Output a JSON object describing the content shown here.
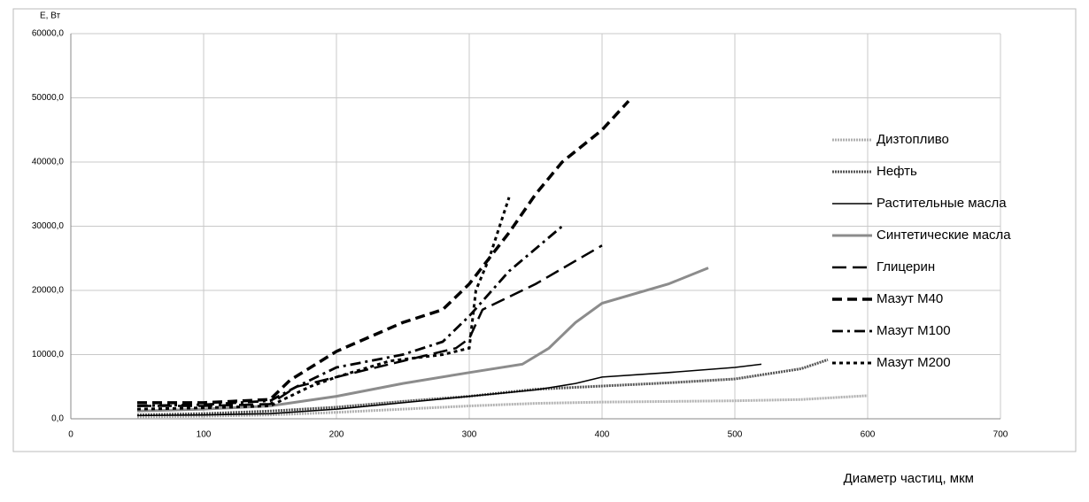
{
  "chart_data": {
    "type": "line",
    "y_label": "E, Вт",
    "x_label": "Диаметр частиц, мкм",
    "xlim": [
      0,
      700
    ],
    "xticks": [
      0,
      100,
      200,
      300,
      400,
      500,
      600,
      700
    ],
    "ylim": [
      0,
      60000
    ],
    "yticks": [
      {
        "value": 0,
        "label": "0,0"
      },
      {
        "value": 10000,
        "label": "10000,0"
      },
      {
        "value": 20000,
        "label": "20000,0"
      },
      {
        "value": 30000,
        "label": "30000,0"
      },
      {
        "value": 40000,
        "label": "40000,0"
      },
      {
        "value": 50000,
        "label": "50000,0"
      },
      {
        "value": 60000,
        "label": "60000,0"
      }
    ],
    "grid": true,
    "legend": "right",
    "series": [
      {
        "name": "Дизтопливо",
        "color": "#b0b0b0",
        "style": "dotted",
        "x": [
          50,
          100,
          150,
          200,
          250,
          300,
          350,
          400,
          450,
          500,
          550,
          600
        ],
        "values": [
          300,
          400,
          600,
          1000,
          1500,
          2000,
          2400,
          2600,
          2700,
          2800,
          3000,
          3600
        ]
      },
      {
        "name": "Нефть",
        "color": "#555555",
        "style": "dotted",
        "x": [
          50,
          100,
          150,
          200,
          250,
          300,
          350,
          400,
          450,
          500,
          550,
          570
        ],
        "values": [
          600,
          800,
          1200,
          1800,
          2700,
          3500,
          4600,
          5100,
          5600,
          6200,
          7800,
          9200
        ]
      },
      {
        "name": "Растительные масла",
        "color": "#000000",
        "style": "solid",
        "x": [
          50,
          100,
          150,
          200,
          250,
          300,
          350,
          380,
          400,
          450,
          500,
          520
        ],
        "values": [
          500,
          600,
          800,
          1500,
          2500,
          3500,
          4500,
          5500,
          6500,
          7200,
          8000,
          8500
        ]
      },
      {
        "name": "Синтетические масла",
        "color": "#8c8c8c",
        "style": "solid-thick",
        "x": [
          50,
          100,
          150,
          200,
          250,
          300,
          340,
          360,
          380,
          400,
          450,
          480
        ],
        "values": [
          1200,
          1500,
          2000,
          3500,
          5500,
          7200,
          8500,
          11000,
          15000,
          18000,
          21000,
          23500
        ]
      },
      {
        "name": "Глицерин",
        "color": "#000000",
        "style": "long-dash",
        "x": [
          50,
          100,
          150,
          170,
          200,
          250,
          290,
          300,
          310,
          350,
          400
        ],
        "values": [
          2000,
          2000,
          2300,
          5000,
          6500,
          9000,
          11000,
          12500,
          17000,
          21000,
          27000
        ]
      },
      {
        "name": "Мазут М40",
        "color": "#000000",
        "style": "dash",
        "x": [
          50,
          100,
          150,
          165,
          200,
          250,
          280,
          300,
          330,
          350,
          370,
          400,
          420
        ],
        "values": [
          2500,
          2500,
          3000,
          6000,
          10500,
          15000,
          17000,
          21000,
          29000,
          35000,
          40000,
          45000,
          49500
        ]
      },
      {
        "name": "Мазут М100",
        "color": "#000000",
        "style": "dash-dot",
        "x": [
          50,
          100,
          150,
          170,
          200,
          250,
          280,
          300,
          330,
          370
        ],
        "values": [
          2000,
          2200,
          2800,
          5000,
          8000,
          10000,
          12000,
          16000,
          23000,
          30000
        ]
      },
      {
        "name": "Мазут М200",
        "color": "#000000",
        "style": "short-dash",
        "x": [
          50,
          100,
          150,
          180,
          200,
          240,
          280,
          300,
          305,
          315,
          330
        ],
        "values": [
          1500,
          1700,
          2000,
          5000,
          6500,
          9000,
          10000,
          11000,
          20000,
          25000,
          34500
        ]
      }
    ]
  }
}
